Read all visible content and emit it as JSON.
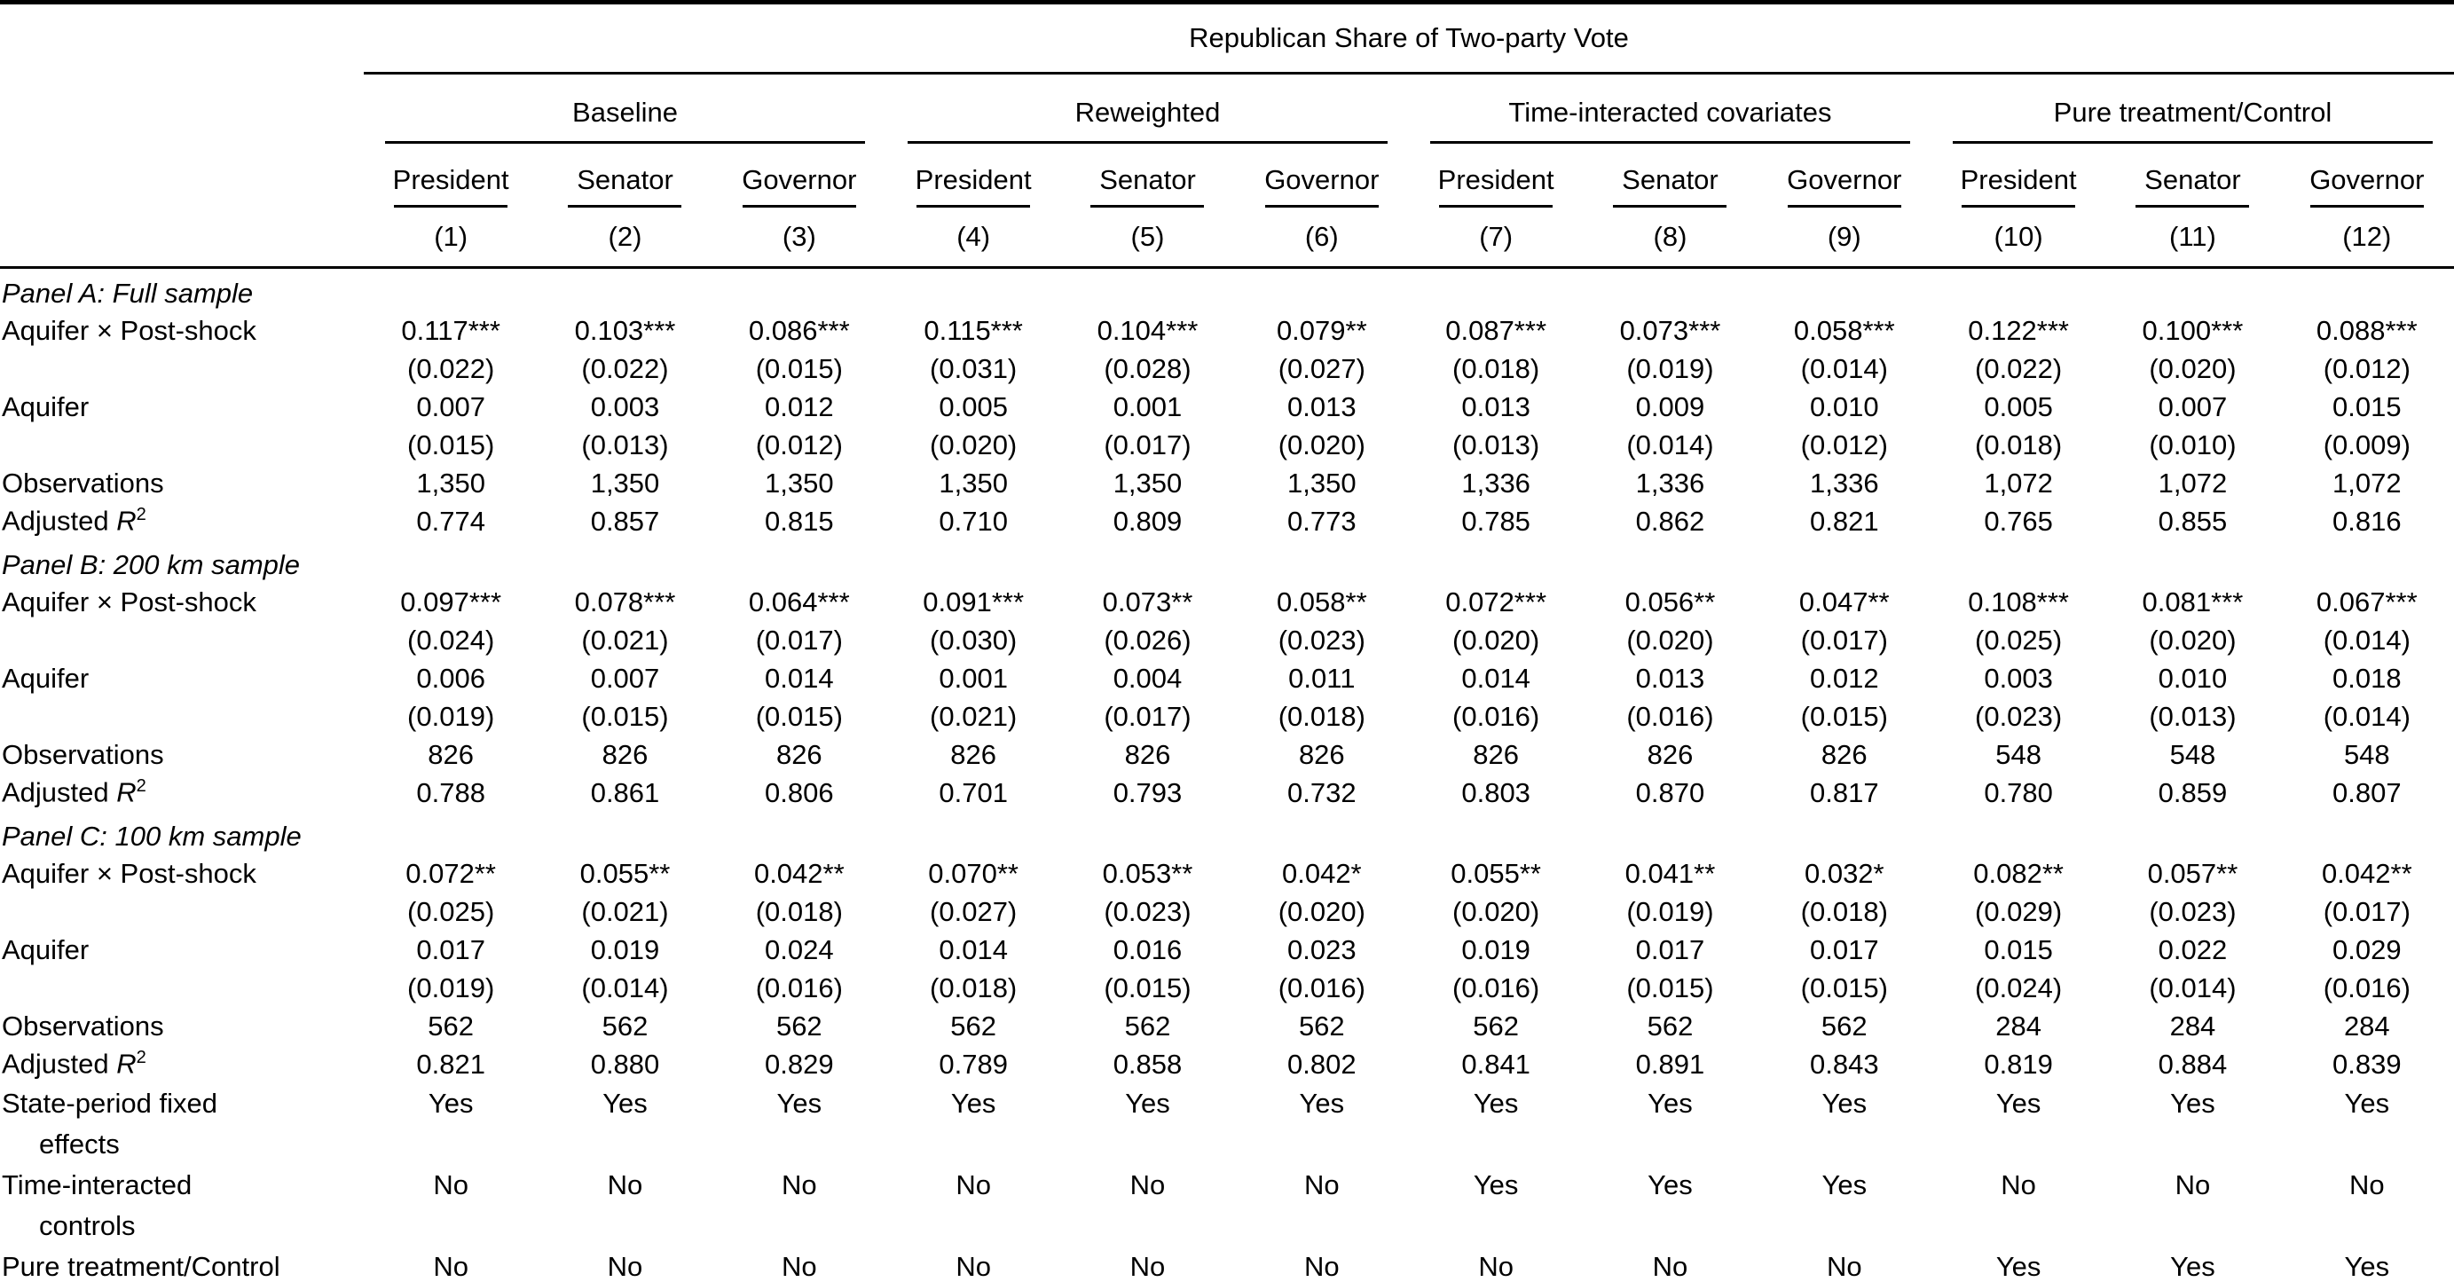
{
  "table": {
    "title": "Republican Share of Two-party Vote",
    "groups": [
      {
        "label": "Baseline"
      },
      {
        "label": "Reweighted"
      },
      {
        "label": "Time-interacted covariates"
      },
      {
        "label": "Pure treatment/Control"
      }
    ],
    "sub_headers": [
      "President",
      "Senator",
      "Governor",
      "President",
      "Senator",
      "Governor",
      "President",
      "Senator",
      "Governor",
      "President",
      "Senator",
      "Governor"
    ],
    "column_numbers": [
      "(1)",
      "(2)",
      "(3)",
      "(4)",
      "(5)",
      "(6)",
      "(7)",
      "(8)",
      "(9)",
      "(10)",
      "(11)",
      "(12)"
    ],
    "panels": [
      {
        "heading": "Panel A: Full sample",
        "rows": [
          {
            "label": "Aquifer × Post-shock",
            "values": [
              "0.117***",
              "0.103***",
              "0.086***",
              "0.115***",
              "0.104***",
              "0.079**",
              "0.087***",
              "0.073***",
              "0.058***",
              "0.122***",
              "0.100***",
              "0.088***"
            ]
          },
          {
            "label": "",
            "values": [
              "(0.022)",
              "(0.022)",
              "(0.015)",
              "(0.031)",
              "(0.028)",
              "(0.027)",
              "(0.018)",
              "(0.019)",
              "(0.014)",
              "(0.022)",
              "(0.020)",
              "(0.012)"
            ]
          },
          {
            "label": "Aquifer",
            "values": [
              "0.007",
              "0.003",
              "0.012",
              "0.005",
              "0.001",
              "0.013",
              "0.013",
              "0.009",
              "0.010",
              "0.005",
              "0.007",
              "0.015"
            ]
          },
          {
            "label": "",
            "values": [
              "(0.015)",
              "(0.013)",
              "(0.012)",
              "(0.020)",
              "(0.017)",
              "(0.020)",
              "(0.013)",
              "(0.014)",
              "(0.012)",
              "(0.018)",
              "(0.010)",
              "(0.009)"
            ]
          },
          {
            "label": "Observations",
            "values": [
              "1,350",
              "1,350",
              "1,350",
              "1,350",
              "1,350",
              "1,350",
              "1,336",
              "1,336",
              "1,336",
              "1,072",
              "1,072",
              "1,072"
            ]
          },
          {
            "label": "Adjusted R²",
            "values": [
              "0.774",
              "0.857",
              "0.815",
              "0.710",
              "0.809",
              "0.773",
              "0.785",
              "0.862",
              "0.821",
              "0.765",
              "0.855",
              "0.816"
            ]
          }
        ]
      },
      {
        "heading": "Panel B: 200 km sample",
        "rows": [
          {
            "label": "Aquifer × Post-shock",
            "values": [
              "0.097***",
              "0.078***",
              "0.064***",
              "0.091***",
              "0.073**",
              "0.058**",
              "0.072***",
              "0.056**",
              "0.047**",
              "0.108***",
              "0.081***",
              "0.067***"
            ]
          },
          {
            "label": "",
            "values": [
              "(0.024)",
              "(0.021)",
              "(0.017)",
              "(0.030)",
              "(0.026)",
              "(0.023)",
              "(0.020)",
              "(0.020)",
              "(0.017)",
              "(0.025)",
              "(0.020)",
              "(0.014)"
            ]
          },
          {
            "label": "Aquifer",
            "values": [
              "0.006",
              "0.007",
              "0.014",
              "0.001",
              "0.004",
              "0.011",
              "0.014",
              "0.013",
              "0.012",
              "0.003",
              "0.010",
              "0.018"
            ]
          },
          {
            "label": "",
            "values": [
              "(0.019)",
              "(0.015)",
              "(0.015)",
              "(0.021)",
              "(0.017)",
              "(0.018)",
              "(0.016)",
              "(0.016)",
              "(0.015)",
              "(0.023)",
              "(0.013)",
              "(0.014)"
            ]
          },
          {
            "label": "Observations",
            "values": [
              "826",
              "826",
              "826",
              "826",
              "826",
              "826",
              "826",
              "826",
              "826",
              "548",
              "548",
              "548"
            ]
          },
          {
            "label": "Adjusted R²",
            "values": [
              "0.788",
              "0.861",
              "0.806",
              "0.701",
              "0.793",
              "0.732",
              "0.803",
              "0.870",
              "0.817",
              "0.780",
              "0.859",
              "0.807"
            ]
          }
        ]
      },
      {
        "heading": "Panel C: 100 km sample",
        "rows": [
          {
            "label": "Aquifer × Post-shock",
            "values": [
              "0.072**",
              "0.055**",
              "0.042**",
              "0.070**",
              "0.053**",
              "0.042*",
              "0.055**",
              "0.041**",
              "0.032*",
              "0.082**",
              "0.057**",
              "0.042**"
            ]
          },
          {
            "label": "",
            "values": [
              "(0.025)",
              "(0.021)",
              "(0.018)",
              "(0.027)",
              "(0.023)",
              "(0.020)",
              "(0.020)",
              "(0.019)",
              "(0.018)",
              "(0.029)",
              "(0.023)",
              "(0.017)"
            ]
          },
          {
            "label": "Aquifer",
            "values": [
              "0.017",
              "0.019",
              "0.024",
              "0.014",
              "0.016",
              "0.023",
              "0.019",
              "0.017",
              "0.017",
              "0.015",
              "0.022",
              "0.029"
            ]
          },
          {
            "label": "",
            "values": [
              "(0.019)",
              "(0.014)",
              "(0.016)",
              "(0.018)",
              "(0.015)",
              "(0.016)",
              "(0.016)",
              "(0.015)",
              "(0.015)",
              "(0.024)",
              "(0.014)",
              "(0.016)"
            ]
          },
          {
            "label": "Observations",
            "values": [
              "562",
              "562",
              "562",
              "562",
              "562",
              "562",
              "562",
              "562",
              "562",
              "284",
              "284",
              "284"
            ]
          },
          {
            "label": "Adjusted R²",
            "values": [
              "0.821",
              "0.880",
              "0.829",
              "0.789",
              "0.858",
              "0.802",
              "0.841",
              "0.891",
              "0.843",
              "0.819",
              "0.884",
              "0.839"
            ]
          }
        ]
      }
    ],
    "footer_rows": [
      {
        "label_lines": [
          "State-period fixed",
          "effects"
        ],
        "values": [
          "Yes",
          "Yes",
          "Yes",
          "Yes",
          "Yes",
          "Yes",
          "Yes",
          "Yes",
          "Yes",
          "Yes",
          "Yes",
          "Yes"
        ]
      },
      {
        "label_lines": [
          "Time-interacted",
          "controls"
        ],
        "values": [
          "No",
          "No",
          "No",
          "No",
          "No",
          "No",
          "Yes",
          "Yes",
          "Yes",
          "No",
          "No",
          "No"
        ]
      },
      {
        "label_lines": [
          "Pure treatment/Control"
        ],
        "values": [
          "No",
          "No",
          "No",
          "No",
          "No",
          "No",
          "No",
          "No",
          "No",
          "Yes",
          "Yes",
          "Yes"
        ]
      }
    ]
  }
}
